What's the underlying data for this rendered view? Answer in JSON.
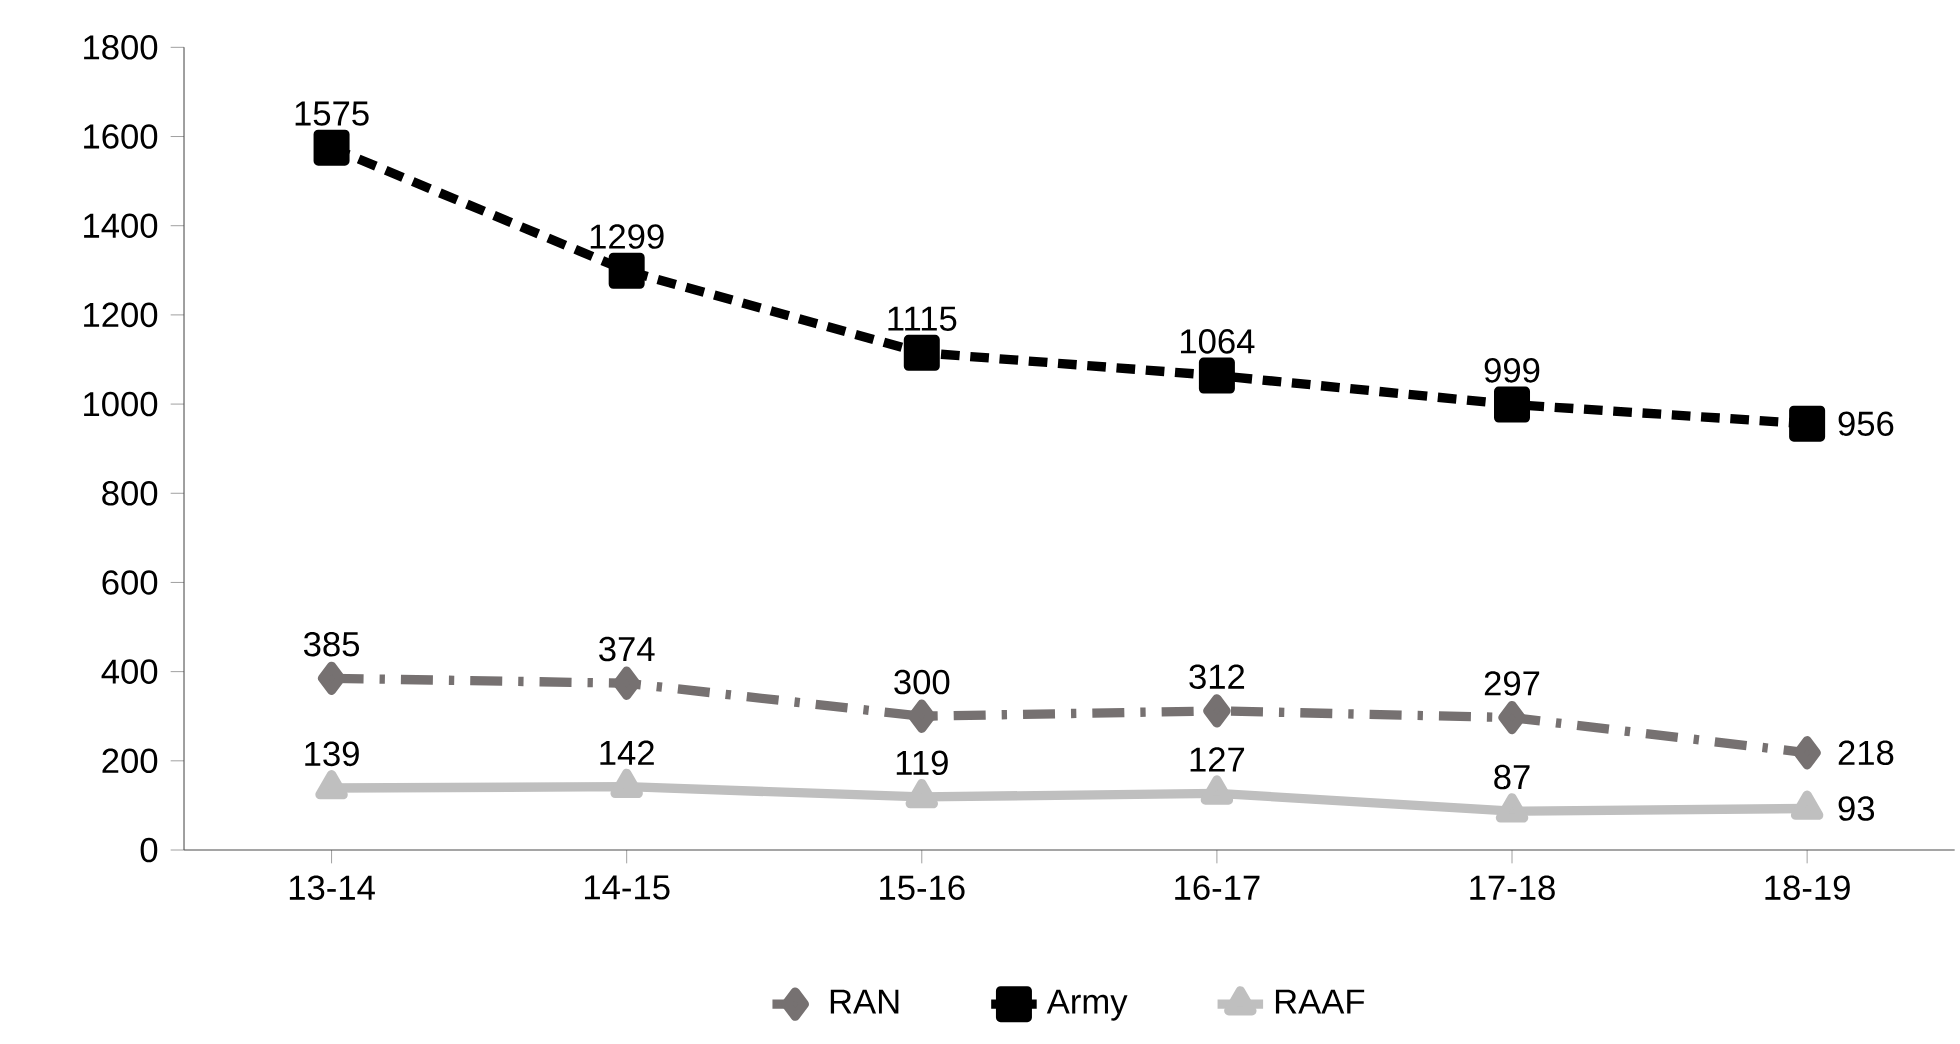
{
  "chart_data": {
    "type": "line",
    "categories": [
      "13-14",
      "14-15",
      "15-16",
      "16-17",
      "17-18",
      "18-19"
    ],
    "series": [
      {
        "name": "RAN",
        "color": "#767171",
        "values": [
          385,
          374,
          300,
          312,
          297,
          218
        ],
        "marker": "diamond",
        "line_style": "dashdot"
      },
      {
        "name": "Army",
        "color": "#000000",
        "values": [
          1575,
          1299,
          1115,
          1064,
          999,
          956
        ],
        "marker": "square",
        "line_style": "dashed"
      },
      {
        "name": "RAAF",
        "color": "#bfbfbf",
        "values": [
          139,
          142,
          119,
          127,
          87,
          93
        ],
        "marker": "triangle",
        "line_style": "solid"
      }
    ],
    "ylim": [
      0,
      1800
    ],
    "yticks": [
      0,
      200,
      400,
      600,
      800,
      1000,
      1200,
      1400,
      1600,
      1800
    ],
    "grid": false,
    "legend": "bottom",
    "data_labels": true
  }
}
